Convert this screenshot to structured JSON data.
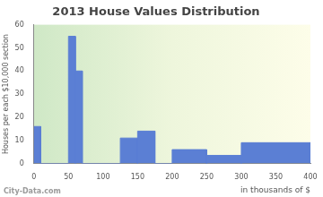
{
  "chart_data": {
    "type": "histogram",
    "title": "2013 House Values Distribution",
    "x_label": "in thousands of $",
    "y_label": "Houses per each $10,000 section",
    "bins": [
      0,
      10,
      50,
      60,
      70,
      125,
      150,
      175,
      200,
      250,
      300,
      400
    ],
    "counts": [
      16,
      0,
      55,
      40,
      0,
      11,
      14,
      0,
      6,
      3.5,
      9
    ],
    "color": "#5b7fd4",
    "xlim": [
      0,
      400
    ],
    "xticks": [
      0,
      50,
      100,
      150,
      200,
      250,
      300,
      350,
      400
    ],
    "ylim": [
      0,
      60
    ],
    "yticks": [
      0,
      10,
      20,
      30,
      40,
      50,
      60
    ],
    "grid": false,
    "annotations": [
      "City-Data.com"
    ]
  }
}
